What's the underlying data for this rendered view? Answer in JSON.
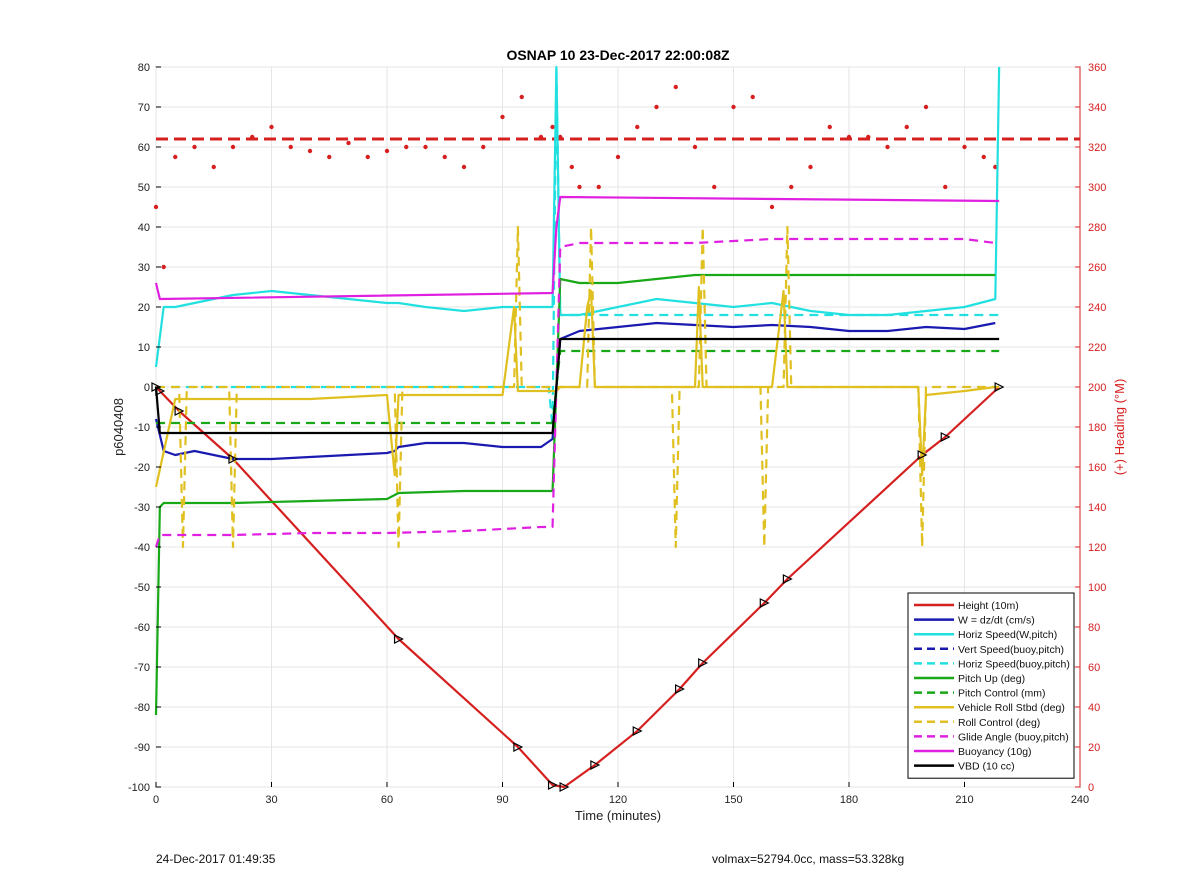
{
  "chart_data": {
    "type": "line",
    "title": "OSNAP 10 23-Dec-2017 22:00:08Z",
    "xlabel": "Time (minutes)",
    "ylabel_left": "p6040408",
    "ylabel_right": "(+) Heading (°M)",
    "xlim": [
      0,
      240
    ],
    "ylim_left": [
      -100,
      80
    ],
    "ylim_right": [
      0,
      360
    ],
    "xticks": [
      "0",
      "30",
      "60",
      "90",
      "120",
      "150",
      "180",
      "210",
      "240"
    ],
    "yticks_left": [
      "80",
      "70",
      "60",
      "50",
      "40",
      "30",
      "20",
      "10",
      "0",
      "-10",
      "-20",
      "-30",
      "-40",
      "-50",
      "-60",
      "-70",
      "-80",
      "-90",
      "-100"
    ],
    "yticks_right": [
      "360",
      "340",
      "320",
      "300",
      "280",
      "260",
      "240",
      "220",
      "200",
      "180",
      "160",
      "140",
      "120",
      "100",
      "80",
      "60",
      "40",
      "20",
      "0"
    ],
    "grid": true,
    "legend_position": "bottom-right",
    "series": [
      {
        "name": "Height (10m)",
        "color": "#d62020",
        "style": "solid",
        "x": [
          0,
          1,
          6,
          20,
          63,
          94,
          103,
          106,
          114,
          125,
          136,
          142,
          158,
          164,
          199,
          205,
          219
        ],
        "y": [
          0,
          -1,
          -6,
          -18,
          -63,
          -90,
          -99.5,
          -100,
          -94.5,
          -86,
          -75.5,
          -69,
          -54,
          -48,
          -17,
          -12.5,
          0
        ]
      },
      {
        "name": "W = dz/dt (cm/s)",
        "color": "#1a1ab0",
        "style": "solid",
        "x": [
          0,
          2,
          5,
          10,
          20,
          30,
          40,
          50,
          60,
          62,
          63,
          70,
          80,
          90,
          100,
          103,
          104,
          105,
          110,
          120,
          130,
          140,
          150,
          160,
          170,
          180,
          190,
          200,
          210,
          218
        ],
        "y": [
          -8,
          -16,
          -17,
          -16,
          -18,
          -18,
          -17.5,
          -17,
          -16.5,
          -16,
          -15,
          -14,
          -14,
          -15,
          -15,
          -13,
          0,
          12,
          14,
          15,
          16,
          15.5,
          15,
          15.5,
          15,
          14,
          14,
          15,
          14.5,
          16
        ]
      },
      {
        "name": "Horiz Speed(W,pitch)",
        "color": "#22e0e0",
        "style": "solid",
        "x": [
          0,
          2,
          5,
          10,
          20,
          30,
          40,
          50,
          60,
          63,
          70,
          80,
          90,
          100,
          103,
          104,
          105,
          110,
          120,
          130,
          140,
          150,
          160,
          170,
          180,
          190,
          200,
          210,
          218,
          219
        ],
        "y": [
          5,
          20,
          20,
          21,
          23,
          24,
          23,
          22,
          21,
          21,
          20,
          19,
          20,
          20,
          20,
          80,
          18,
          18,
          20,
          22,
          21,
          20,
          21,
          19,
          18,
          18,
          19,
          20,
          22,
          80
        ]
      },
      {
        "name": "Vert Speed(buoy,pitch)",
        "color": "#1a1ab0",
        "style": "dashed",
        "x": [],
        "y": []
      },
      {
        "name": "Horiz Speed(buoy,pitch)",
        "color": "#22e0e0",
        "style": "dashed",
        "x": [
          0,
          102,
          103,
          104,
          105,
          219
        ],
        "y": [
          0,
          0,
          -10,
          80,
          18,
          18
        ]
      },
      {
        "name": "Pitch Up (deg)",
        "color": "#18a818",
        "style": "solid",
        "x": [
          0,
          1,
          2,
          5,
          10,
          20,
          40,
          60,
          63,
          80,
          100,
          103,
          104,
          105,
          110,
          120,
          130,
          140,
          150,
          160,
          180,
          200,
          210,
          218
        ],
        "y": [
          -82,
          -30,
          -29,
          -29,
          -29,
          -29,
          -28.5,
          -28,
          -26.5,
          -26,
          -26,
          -26,
          0,
          27,
          26,
          26,
          27,
          28,
          28,
          28,
          28,
          28,
          28,
          28
        ]
      },
      {
        "name": "Pitch Control (mm)",
        "color": "#18a818",
        "style": "dashed",
        "x": [
          0,
          5,
          103,
          104,
          105,
          219
        ],
        "y": [
          -9,
          -9,
          -9,
          0,
          9,
          9
        ]
      },
      {
        "name": "Vehicle Roll Stbd (deg)",
        "color": "#e0c020",
        "style": "solid",
        "x": [
          0,
          5,
          20,
          40,
          60,
          62,
          63,
          80,
          90,
          93,
          94,
          95,
          103,
          104,
          105,
          110,
          112,
          113,
          114,
          120,
          140,
          141,
          142,
          143,
          160,
          163,
          164,
          165,
          180,
          198,
          199,
          200,
          210,
          218,
          219
        ],
        "y": [
          -25,
          -3,
          -3,
          -3,
          -2,
          -22,
          -2,
          -2,
          -2,
          20,
          -1,
          -1,
          -1,
          -1,
          0,
          0,
          20,
          24,
          0,
          0,
          0,
          25,
          0,
          0,
          0,
          24,
          0,
          0,
          0,
          0,
          -22,
          -2,
          -1,
          0,
          0
        ]
      },
      {
        "name": "Roll Control (deg)",
        "color": "#e0c020",
        "style": "dashed",
        "x": [
          0,
          6,
          7,
          8,
          19,
          20,
          21,
          62,
          63,
          64,
          93,
          94,
          95,
          112,
          113,
          114,
          134,
          135,
          136,
          141,
          142,
          143,
          157,
          158,
          159,
          163,
          164,
          165,
          198,
          199,
          200,
          219
        ],
        "y": [
          0,
          0,
          -40,
          0,
          0,
          -40,
          0,
          0,
          -40,
          0,
          0,
          40,
          0,
          0,
          40,
          0,
          0,
          -40,
          0,
          0,
          40,
          0,
          0,
          -40,
          0,
          0,
          40,
          0,
          0,
          -40,
          0,
          0
        ]
      },
      {
        "name": "Glide Angle (buoy,pitch)",
        "color": "#e020e0",
        "style": "dashed",
        "x": [
          0,
          1,
          5,
          20,
          40,
          60,
          80,
          100,
          103,
          104,
          105,
          110,
          120,
          140,
          160,
          180,
          200,
          210,
          218
        ],
        "y": [
          -40,
          -37,
          -37,
          -37,
          -36.5,
          -36.5,
          -36,
          -35,
          -35,
          0,
          35,
          36,
          36,
          36,
          37,
          37,
          37,
          37,
          36
        ]
      },
      {
        "name": "Buoyancy (10g)",
        "color": "#e020e0",
        "style": "solid",
        "x": [
          0,
          1,
          103,
          104,
          105,
          219
        ],
        "y": [
          26,
          22,
          23.5,
          40,
          47.5,
          46.5
        ]
      },
      {
        "name": "VBD (10 cc)",
        "color": "#000000",
        "style": "solid",
        "x": [
          0,
          1,
          3,
          103,
          104,
          105,
          219
        ],
        "y": [
          0,
          -11.5,
          -11.5,
          -11.5,
          0,
          12,
          12
        ]
      }
    ],
    "heading_series": {
      "axis": "right",
      "color": "#d62020",
      "style": "dots",
      "x": [
        0,
        2,
        5,
        10,
        15,
        20,
        25,
        30,
        35,
        40,
        45,
        50,
        55,
        60,
        65,
        70,
        75,
        80,
        85,
        90,
        95,
        100,
        103,
        105,
        108,
        110,
        115,
        120,
        125,
        130,
        135,
        140,
        145,
        150,
        155,
        160,
        165,
        170,
        175,
        180,
        185,
        190,
        195,
        200,
        205,
        210,
        215,
        218
      ],
      "y": [
        290,
        260,
        315,
        320,
        310,
        320,
        325,
        330,
        320,
        318,
        315,
        322,
        315,
        318,
        320,
        320,
        315,
        310,
        320,
        335,
        345,
        325,
        330,
        325,
        310,
        300,
        300,
        315,
        330,
        340,
        350,
        320,
        300,
        340,
        345,
        290,
        300,
        310,
        330,
        325,
        325,
        320,
        330,
        340,
        300,
        320,
        315,
        310
      ],
      "reference_value": 324
    }
  },
  "footer": {
    "timestamp": "24-Dec-2017 01:49:35",
    "stats": "volmax=52794.0cc, mass=53.328kg"
  }
}
